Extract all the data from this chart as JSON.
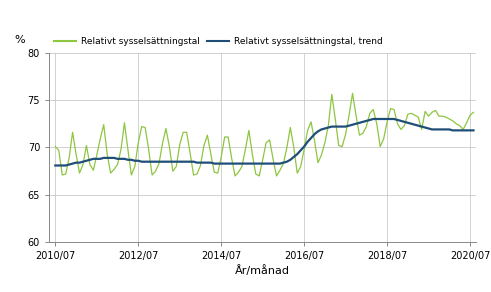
{
  "title": "",
  "ylabel": "%",
  "xlabel": "År/månad",
  "ylim": [
    60,
    80
  ],
  "yticks": [
    60,
    65,
    70,
    75,
    80
  ],
  "xtick_labels": [
    "2010/07",
    "2012/07",
    "2014/07",
    "2016/07",
    "2018/07",
    "2020/07"
  ],
  "legend_labels": [
    "Relativt sysselsättningstal",
    "Relativt sysselsättningstal, trend"
  ],
  "line1_color": "#8dc63f",
  "line2_color": "#1f4e79",
  "background_color": "#ffffff",
  "grid_color": "#c0c0c0",
  "raw_values": [
    70.1,
    69.7,
    67.1,
    67.2,
    68.9,
    71.6,
    69.3,
    67.3,
    68.2,
    70.2,
    68.2,
    67.6,
    69.2,
    70.9,
    72.4,
    69.3,
    67.3,
    67.7,
    68.2,
    69.8,
    72.6,
    69.8,
    67.1,
    68.0,
    70.5,
    72.2,
    72.1,
    69.8,
    67.1,
    67.5,
    68.3,
    70.4,
    72.0,
    70.1,
    67.5,
    68.0,
    70.3,
    71.6,
    71.6,
    69.4,
    67.1,
    67.2,
    68.1,
    70.2,
    71.3,
    69.3,
    67.4,
    67.3,
    69.0,
    71.1,
    71.1,
    68.9,
    67.0,
    67.4,
    68.0,
    69.8,
    71.8,
    69.3,
    67.2,
    67.0,
    68.7,
    70.5,
    70.8,
    68.8,
    67.0,
    67.6,
    68.3,
    70.0,
    72.1,
    70.0,
    67.3,
    68.0,
    69.8,
    71.8,
    72.7,
    70.7,
    68.4,
    69.2,
    70.5,
    72.3,
    75.6,
    73.0,
    70.2,
    70.1,
    71.4,
    73.4,
    75.7,
    73.4,
    71.3,
    71.5,
    72.2,
    73.6,
    74.0,
    72.5,
    70.1,
    70.9,
    72.7,
    74.1,
    74.0,
    72.5,
    71.9,
    72.3,
    73.5,
    73.6,
    73.4,
    73.2,
    71.9,
    73.8,
    73.3,
    73.7,
    73.9,
    73.3,
    73.3,
    73.2,
    73.0,
    72.8,
    72.5,
    72.3,
    71.9,
    72.6,
    73.4,
    73.7
  ],
  "trend_values": [
    68.1,
    68.1,
    68.1,
    68.1,
    68.2,
    68.3,
    68.4,
    68.4,
    68.5,
    68.6,
    68.7,
    68.8,
    68.8,
    68.8,
    68.9,
    68.9,
    68.9,
    68.9,
    68.8,
    68.8,
    68.8,
    68.7,
    68.7,
    68.6,
    68.6,
    68.5,
    68.5,
    68.5,
    68.5,
    68.5,
    68.5,
    68.5,
    68.5,
    68.5,
    68.5,
    68.5,
    68.5,
    68.5,
    68.5,
    68.5,
    68.5,
    68.4,
    68.4,
    68.4,
    68.4,
    68.4,
    68.3,
    68.3,
    68.3,
    68.3,
    68.3,
    68.3,
    68.3,
    68.3,
    68.3,
    68.3,
    68.3,
    68.3,
    68.3,
    68.3,
    68.3,
    68.3,
    68.3,
    68.3,
    68.3,
    68.3,
    68.4,
    68.5,
    68.7,
    69.0,
    69.3,
    69.7,
    70.1,
    70.6,
    71.0,
    71.4,
    71.7,
    71.9,
    72.0,
    72.1,
    72.2,
    72.2,
    72.2,
    72.2,
    72.2,
    72.3,
    72.4,
    72.5,
    72.6,
    72.7,
    72.8,
    72.9,
    73.0,
    73.0,
    73.0,
    73.0,
    73.0,
    73.0,
    73.0,
    72.9,
    72.8,
    72.7,
    72.6,
    72.5,
    72.4,
    72.3,
    72.2,
    72.1,
    72.0,
    71.9,
    71.9,
    71.9,
    71.9,
    71.9,
    71.9,
    71.8,
    71.8,
    71.8,
    71.8,
    71.8,
    71.8,
    71.8
  ]
}
